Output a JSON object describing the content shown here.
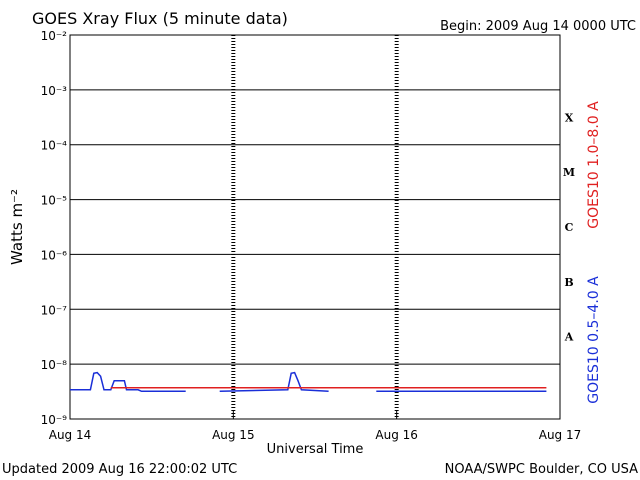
{
  "chart_data": {
    "type": "line",
    "title": "GOES Xray Flux (5 minute data)",
    "subtitle": "Begin:  2009 Aug 14 0000 UTC",
    "x_label": "Universal Time",
    "y_label": "Watts m⁻²",
    "footer_left": "Updated 2009 Aug 16 22:00:02 UTC",
    "footer_right": "NOAA/SWPC Boulder, CO USA",
    "log_y": true,
    "grid": true,
    "xlim": [
      0,
      72
    ],
    "xticks": [
      {
        "value": 0,
        "label": "Aug 14"
      },
      {
        "value": 24,
        "label": "Aug 15"
      },
      {
        "value": 48,
        "label": "Aug 16"
      },
      {
        "value": 72,
        "label": "Aug 17"
      }
    ],
    "ylim": [
      1e-09,
      0.01
    ],
    "yticks": [
      {
        "value": 1e-09,
        "label": "10⁻⁹"
      },
      {
        "value": 1e-08,
        "label": "10⁻⁸"
      },
      {
        "value": 1e-07,
        "label": "10⁻⁷"
      },
      {
        "value": 1e-06,
        "label": "10⁻⁶"
      },
      {
        "value": 1e-05,
        "label": "10⁻⁵"
      },
      {
        "value": 0.0001,
        "label": "10⁻⁴"
      },
      {
        "value": 0.001,
        "label": "10⁻³"
      },
      {
        "value": 0.01,
        "label": "10⁻²"
      }
    ],
    "class_labels": [
      {
        "value": 0.0001,
        "label": "X"
      },
      {
        "value": 1e-05,
        "label": "M"
      },
      {
        "value": 1e-06,
        "label": "C"
      },
      {
        "value": 1e-07,
        "label": "B"
      },
      {
        "value": 1e-08,
        "label": "A"
      }
    ],
    "x": [
      0,
      3,
      3.5,
      4,
      4.5,
      5,
      6,
      6.5,
      7,
      8,
      8.3,
      10,
      10.5,
      17,
      18,
      22,
      32,
      32.5,
      33,
      33.5,
      34,
      38,
      39,
      45,
      60,
      62,
      70
    ],
    "series": [
      {
        "name": "GOES10 1.0–8.0 A",
        "color": "#e02020",
        "values": [
          null,
          null,
          null,
          null,
          null,
          null,
          3.7e-09,
          3.7e-09,
          3.7e-09,
          3.7e-09,
          3.7e-09,
          3.7e-09,
          3.7e-09,
          3.7e-09,
          3.7e-09,
          3.7e-09,
          3.7e-09,
          3.7e-09,
          3.7e-09,
          3.7e-09,
          3.7e-09,
          3.7e-09,
          3.7e-09,
          3.7e-09,
          3.7e-09,
          3.7e-09,
          3.7e-09
        ]
      },
      {
        "name": "GOES10 0.5–4.0 A",
        "color": "#1a2fd8",
        "values": [
          3.4e-09,
          3.4e-09,
          6.8e-09,
          7e-09,
          6e-09,
          3.4e-09,
          3.4e-09,
          5e-09,
          5e-09,
          5e-09,
          3.4e-09,
          3.4e-09,
          3.2e-09,
          3.2e-09,
          null,
          3.2e-09,
          3.4e-09,
          6.8e-09,
          7e-09,
          5e-09,
          3.4e-09,
          3.2e-09,
          null,
          3.2e-09,
          3.2e-09,
          3.2e-09,
          3.2e-09
        ]
      }
    ]
  }
}
